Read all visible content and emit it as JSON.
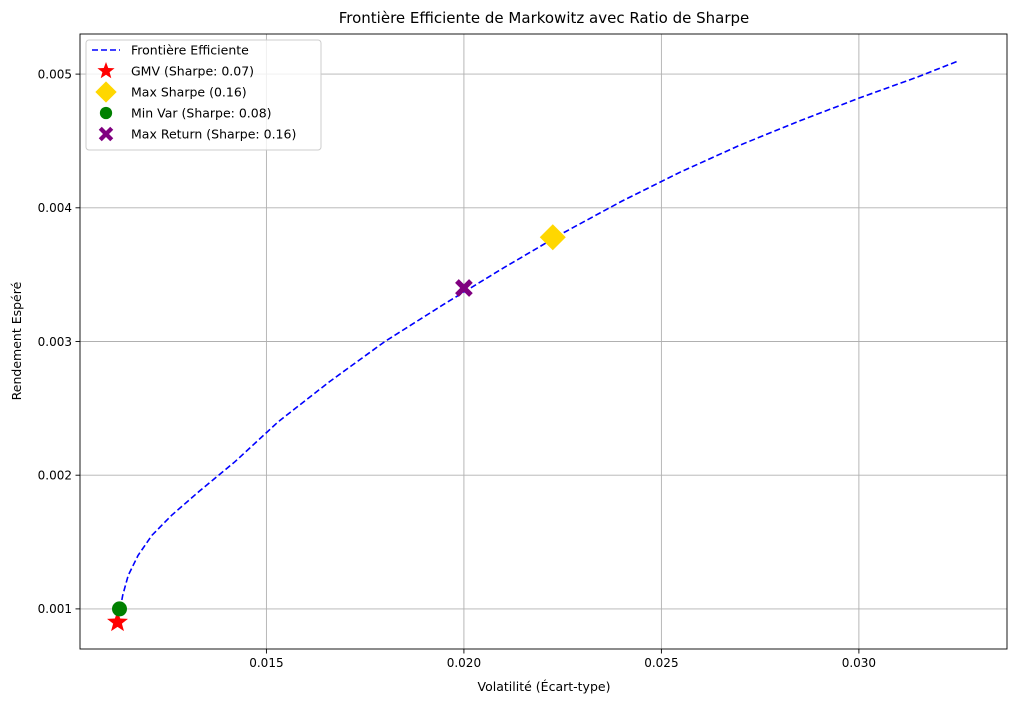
{
  "chart_data": {
    "type": "line",
    "title": "Frontière Efficiente de Markowitz avec Ratio de Sharpe",
    "xlabel": "Volatilité (Écart-type)",
    "ylabel": "Rendement Espéré",
    "xlim": [
      0.01028,
      0.03375
    ],
    "ylim": [
      0.0007,
      0.0053
    ],
    "xticks": [
      0.015,
      0.02,
      0.025,
      0.03
    ],
    "xtick_labels": [
      "0.015",
      "0.020",
      "0.025",
      "0.030"
    ],
    "yticks": [
      0.001,
      0.002,
      0.003,
      0.004,
      0.005
    ],
    "ytick_labels": [
      "0.001",
      "0.002",
      "0.003",
      "0.004",
      "0.005"
    ],
    "grid": true,
    "legend_position": "top-left",
    "frontier": {
      "name": "Frontière Efficiente",
      "color": "#0000ff",
      "style": "dashed",
      "x": [
        0.0113,
        0.01136,
        0.0115,
        0.01175,
        0.0121,
        0.0126,
        0.0133,
        0.0142,
        0.0153,
        0.0166,
        0.018,
        0.0195,
        0.021,
        0.0225,
        0.024,
        0.0255,
        0.027,
        0.0285,
        0.03,
        0.0315,
        0.03253
      ],
      "y": [
        0.001,
        0.0011,
        0.00125,
        0.0014,
        0.00155,
        0.0017,
        0.00188,
        0.0021,
        0.0024,
        0.0027,
        0.003,
        0.00328,
        0.00355,
        0.00381,
        0.00405,
        0.00427,
        0.00447,
        0.00465,
        0.00482,
        0.00498,
        0.0051
      ]
    },
    "markers": [
      {
        "name": "GMV (Sharpe: 0.07)",
        "shape": "star",
        "color": "#ff0000",
        "x": 0.01123,
        "y": 0.0009
      },
      {
        "name": "Max Sharpe (0.16)",
        "shape": "diamond",
        "color": "#ffd700",
        "x": 0.02225,
        "y": 0.00378
      },
      {
        "name": "Min Var (Sharpe: 0.08)",
        "shape": "circle",
        "color": "#008000",
        "x": 0.01128,
        "y": 0.001
      },
      {
        "name": "Max Return (Sharpe: 0.16)",
        "shape": "x",
        "color": "#800080",
        "x": 0.02,
        "y": 0.0034
      }
    ]
  }
}
